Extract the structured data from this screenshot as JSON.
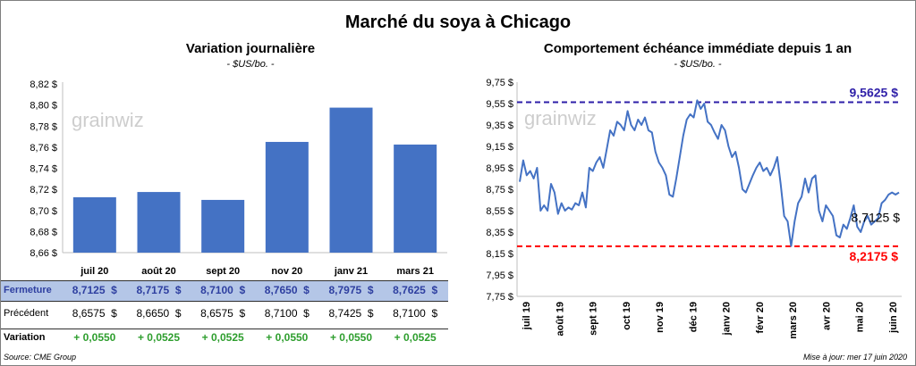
{
  "title": "Marché du soya à Chicago",
  "chart_data": [
    {
      "type": "bar",
      "title": "Variation journalière",
      "unit": "- $US/bo. -",
      "categories": [
        "juil 20",
        "août 20",
        "sept 20",
        "nov 20",
        "janv 21",
        "mars 21"
      ],
      "values": [
        8.7125,
        8.7175,
        8.71,
        8.765,
        8.7975,
        8.7625
      ],
      "ylim": [
        8.66,
        8.82
      ],
      "yticks": [
        "8,66 $",
        "8,68 $",
        "8,70 $",
        "8,72 $",
        "8,74 $",
        "8,76 $",
        "8,78 $",
        "8,80 $",
        "8,82 $"
      ],
      "grid": false,
      "bar_color": "#4472c4"
    },
    {
      "type": "line",
      "title": "Comportement échéance immédiate depuis 1 an",
      "unit": "- $US/bo. -",
      "ylim": [
        7.75,
        9.75
      ],
      "yticks": [
        "7,75 $",
        "7,95 $",
        "8,15 $",
        "8,35 $",
        "8,55 $",
        "8,75 $",
        "8,95 $",
        "9,15 $",
        "9,35 $",
        "9,55 $",
        "9,75 $"
      ],
      "xticks": [
        "juil 19",
        "août 19",
        "sept 19",
        "oct 19",
        "nov 19",
        "déc 19",
        "janv 20",
        "févr 20",
        "mars 20",
        "avr 20",
        "mai 20",
        "juin 20"
      ],
      "series_values": [
        8.82,
        9.02,
        8.88,
        8.92,
        8.85,
        8.95,
        8.55,
        8.6,
        8.55,
        8.8,
        8.72,
        8.52,
        8.62,
        8.55,
        8.58,
        8.56,
        8.62,
        8.6,
        8.72,
        8.58,
        8.95,
        8.92,
        9.0,
        9.05,
        8.95,
        9.12,
        9.3,
        9.25,
        9.38,
        9.35,
        9.3,
        9.48,
        9.35,
        9.3,
        9.4,
        9.35,
        9.42,
        9.3,
        9.28,
        9.1,
        9.0,
        8.95,
        8.88,
        8.7,
        8.68,
        8.85,
        9.05,
        9.25,
        9.4,
        9.45,
        9.42,
        9.58,
        9.5,
        9.55,
        9.38,
        9.35,
        9.28,
        9.22,
        9.35,
        9.3,
        9.15,
        9.05,
        9.1,
        8.95,
        8.75,
        8.72,
        8.8,
        8.88,
        8.95,
        9.0,
        8.92,
        8.95,
        8.88,
        8.95,
        9.05,
        8.8,
        8.5,
        8.45,
        8.22,
        8.45,
        8.62,
        8.68,
        8.85,
        8.72,
        8.85,
        8.88,
        8.55,
        8.45,
        8.6,
        8.55,
        8.5,
        8.32,
        8.3,
        8.42,
        8.38,
        8.48,
        8.6,
        8.4,
        8.35,
        8.45,
        8.5,
        8.42,
        8.45,
        8.48,
        8.62,
        8.65,
        8.7,
        8.72,
        8.7,
        8.72
      ],
      "series_color": "#4472c4",
      "reference_lines": [
        {
          "value": 9.5625,
          "label": "9,5625 $",
          "color": "#2e1fa8"
        },
        {
          "value": 8.2175,
          "label": "8,2175 $",
          "color": "#ff0000"
        }
      ],
      "last_label": "8,7125 $"
    }
  ],
  "watermark": "grainwiz",
  "table": {
    "rows": [
      {
        "label": "Fermeture",
        "values": [
          "8,7125  $",
          "8,7175  $",
          "8,7100  $",
          "8,7650  $",
          "8,7975  $",
          "8,7625  $"
        ]
      },
      {
        "label": "Précédent",
        "values": [
          "8,6575  $",
          "8,6650  $",
          "8,6575  $",
          "8,7100  $",
          "8,7425  $",
          "8,7100  $"
        ]
      },
      {
        "label": "Variation",
        "values": [
          "+ 0,0550",
          "+ 0,0525",
          "+ 0,0525",
          "+ 0,0550",
          "+ 0,0550",
          "+ 0,0525"
        ]
      }
    ],
    "colors": {
      "fermeture": "#2e3fa0",
      "fermeture_bg": "#b4c6e7",
      "variation": "#2e9e2e"
    }
  },
  "footer": {
    "source": "Source: CME Group",
    "update": "Mise à jour: mer 17 juin 2020"
  }
}
